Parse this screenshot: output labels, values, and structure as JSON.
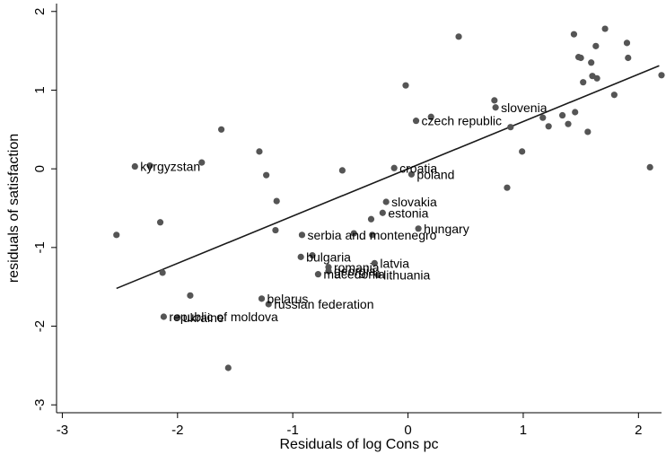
{
  "chart_data": {
    "type": "scatter",
    "xlabel": "Residuals of log Cons pc",
    "ylabel": "residuals of satisfaction",
    "xlim": [
      -3.05,
      2.2
    ],
    "ylim": [
      -3.1,
      2.1
    ],
    "xticks": [
      -3,
      -2,
      -1,
      0,
      1,
      2
    ],
    "yticks": [
      -3,
      -2,
      -1,
      0,
      1,
      2
    ],
    "grid": false,
    "styles": {
      "point_color": "#555555",
      "line_color": "#1a1a1a",
      "axis_color": "#000000"
    },
    "fit_line": {
      "x": [
        -2.53,
        2.18
      ],
      "y": [
        -1.52,
        1.31
      ]
    },
    "labeled_points": [
      {
        "label": "kyrgyzstan",
        "x": -2.37,
        "y": 0.03
      },
      {
        "label": "slovenia",
        "x": 0.76,
        "y": 0.78
      },
      {
        "label": "czech republic",
        "x": 0.07,
        "y": 0.61
      },
      {
        "label": "croatia",
        "x": -0.12,
        "y": 0.01
      },
      {
        "label": "poland",
        "x": 0.03,
        "y": -0.07
      },
      {
        "label": "slovakia",
        "x": -0.19,
        "y": -0.42
      },
      {
        "label": "estonia",
        "x": -0.22,
        "y": -0.56
      },
      {
        "label": "hungary",
        "x": 0.09,
        "y": -0.76
      },
      {
        "label": "serbia and montenegro",
        "x": -0.92,
        "y": -0.84
      },
      {
        "label": "bulgaria",
        "x": -0.93,
        "y": -1.12
      },
      {
        "label": "romania",
        "x": -0.69,
        "y": -1.25
      },
      {
        "label": "latvia",
        "x": -0.29,
        "y": -1.2
      },
      {
        "label": "georgia",
        "x": -0.69,
        "y": -1.3
      },
      {
        "label": "macedonia",
        "x": -0.78,
        "y": -1.34
      },
      {
        "label": "lithuania",
        "x": -0.26,
        "y": -1.35
      },
      {
        "label": "belarus",
        "x": -1.27,
        "y": -1.65
      },
      {
        "label": "russian federation",
        "x": -1.21,
        "y": -1.72
      },
      {
        "label": "republic of moldova",
        "x": -2.12,
        "y": -1.88
      },
      {
        "label": "ukraine",
        "x": -2.0,
        "y": -1.89
      }
    ],
    "unlabeled_points": [
      {
        "x": -2.53,
        "y": -0.84
      },
      {
        "x": -2.24,
        "y": 0.04
      },
      {
        "x": -2.15,
        "y": -0.68
      },
      {
        "x": -2.13,
        "y": -1.32
      },
      {
        "x": -1.89,
        "y": -1.61
      },
      {
        "x": -1.79,
        "y": 0.08
      },
      {
        "x": -1.62,
        "y": 0.5
      },
      {
        "x": -1.56,
        "y": -2.53
      },
      {
        "x": -1.29,
        "y": 0.22
      },
      {
        "x": -1.23,
        "y": -0.08
      },
      {
        "x": -1.14,
        "y": -0.41
      },
      {
        "x": -1.15,
        "y": -0.78
      },
      {
        "x": -0.83,
        "y": -1.1
      },
      {
        "x": -0.57,
        "y": -0.02
      },
      {
        "x": -0.47,
        "y": -0.82
      },
      {
        "x": -0.32,
        "y": -0.64
      },
      {
        "x": -0.31,
        "y": -0.84
      },
      {
        "x": -0.02,
        "y": 1.06
      },
      {
        "x": 0.2,
        "y": 0.66
      },
      {
        "x": 0.44,
        "y": 1.68
      },
      {
        "x": 0.75,
        "y": 0.87
      },
      {
        "x": 0.86,
        "y": -0.24
      },
      {
        "x": 0.89,
        "y": 0.53
      },
      {
        "x": 0.99,
        "y": 0.22
      },
      {
        "x": 1.17,
        "y": 0.65
      },
      {
        "x": 1.22,
        "y": 0.54
      },
      {
        "x": 1.34,
        "y": 0.68
      },
      {
        "x": 1.39,
        "y": 0.57
      },
      {
        "x": 1.44,
        "y": 1.71
      },
      {
        "x": 1.45,
        "y": 0.72
      },
      {
        "x": 1.48,
        "y": 1.42
      },
      {
        "x": 1.5,
        "y": 1.41
      },
      {
        "x": 1.52,
        "y": 1.1
      },
      {
        "x": 1.56,
        "y": 0.47
      },
      {
        "x": 1.59,
        "y": 1.35
      },
      {
        "x": 1.6,
        "y": 1.18
      },
      {
        "x": 1.63,
        "y": 1.56
      },
      {
        "x": 1.64,
        "y": 1.15
      },
      {
        "x": 1.71,
        "y": 1.78
      },
      {
        "x": 1.79,
        "y": 0.94
      },
      {
        "x": 1.9,
        "y": 1.6
      },
      {
        "x": 1.91,
        "y": 1.41
      },
      {
        "x": 2.1,
        "y": 0.02
      },
      {
        "x": 2.2,
        "y": 1.19
      }
    ]
  }
}
